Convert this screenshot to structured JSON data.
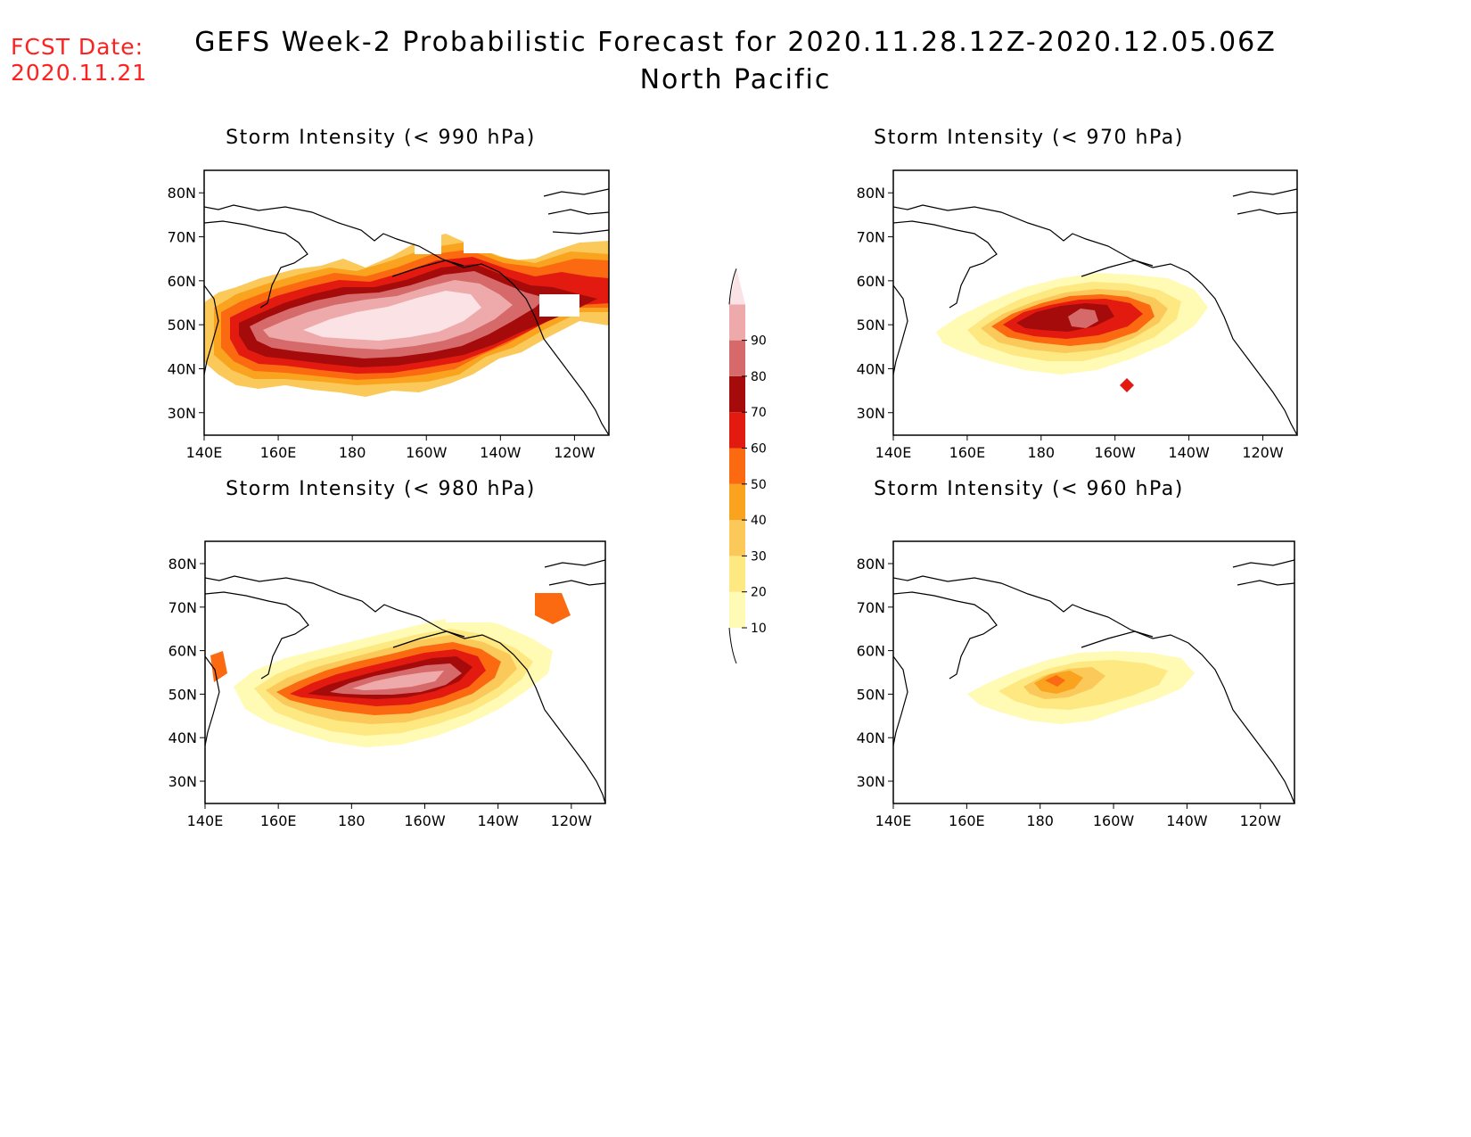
{
  "fcst": {
    "line1": "FCST Date:",
    "line2": "2020.11.21"
  },
  "title": {
    "line1": "GEFS Week-2 Probabilistic Forecast for 2020.11.28.12Z-2020.12.05.06Z",
    "line2": "North Pacific"
  },
  "colorbar": {
    "levels": [
      "10",
      "20",
      "30",
      "40",
      "50",
      "60",
      "70",
      "80",
      "90"
    ],
    "colors": [
      "#fffab4",
      "#fde882",
      "#fbc85a",
      "#f9a31e",
      "#fb6a10",
      "#e21a10",
      "#a50b0b",
      "#d66a6a",
      "#eeaaaa",
      "#fbe3e5"
    ]
  },
  "axes": {
    "lat_labels": [
      "80N",
      "70N",
      "60N",
      "50N",
      "40N",
      "30N"
    ],
    "lon_labels": [
      "140E",
      "160E",
      "180",
      "160W",
      "140W",
      "120W"
    ]
  },
  "panels": [
    {
      "id": "p990",
      "title": "Storm Intensity (< 990 hPa)"
    },
    {
      "id": "p970",
      "title": "Storm Intensity (< 970 hPa)"
    },
    {
      "id": "p980",
      "title": "Storm Intensity (< 980 hPa)"
    },
    {
      "id": "p960",
      "title": "Storm Intensity (< 960 hPa)"
    }
  ]
}
